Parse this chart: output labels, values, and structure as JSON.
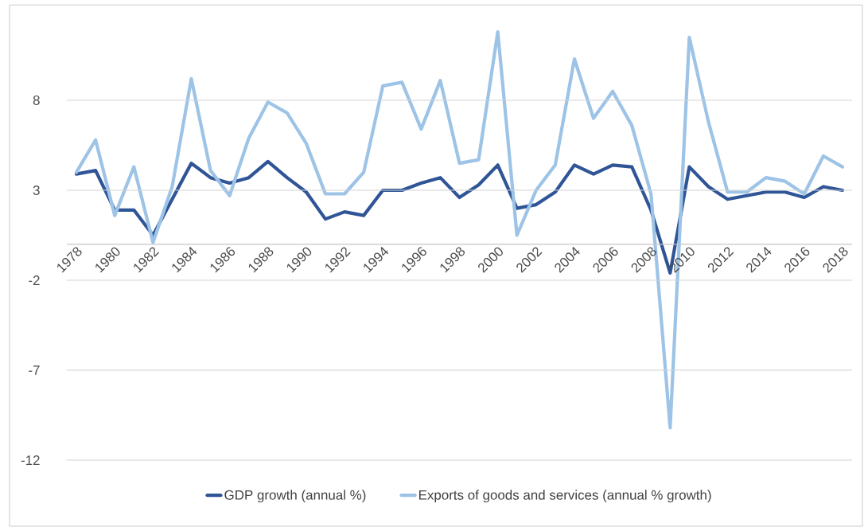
{
  "chart_data": {
    "type": "line",
    "x": [
      1978,
      1979,
      1980,
      1981,
      1982,
      1983,
      1984,
      1985,
      1986,
      1987,
      1988,
      1989,
      1990,
      1991,
      1992,
      1993,
      1994,
      1995,
      1996,
      1997,
      1998,
      1999,
      2000,
      2001,
      2002,
      2003,
      2004,
      2005,
      2006,
      2007,
      2008,
      2009,
      2010,
      2011,
      2012,
      2013,
      2014,
      2015,
      2016,
      2017,
      2018
    ],
    "xlim": [
      1977.5,
      2018.5
    ],
    "xticks": [
      1978,
      1980,
      1982,
      1984,
      1986,
      1988,
      1990,
      1992,
      1994,
      1996,
      1998,
      2000,
      2002,
      2004,
      2006,
      2008,
      2010,
      2012,
      2014,
      2016,
      2018
    ],
    "ylim": [
      -12,
      13.3
    ],
    "yticks": [
      -12,
      -7,
      -2,
      3,
      8
    ],
    "grid": "y",
    "legend": "bottom",
    "marker": "none",
    "line_style": "solid",
    "series": [
      {
        "name": "GDP growth (annual %)",
        "color": "#2f5597",
        "values": [
          3.9,
          4.1,
          1.9,
          1.9,
          0.5,
          2.5,
          4.5,
          3.7,
          3.4,
          3.7,
          4.6,
          3.7,
          2.9,
          1.4,
          1.8,
          1.6,
          3.0,
          3.0,
          3.4,
          3.7,
          2.6,
          3.3,
          4.4,
          2.0,
          2.2,
          2.9,
          4.4,
          3.9,
          4.4,
          4.3,
          1.9,
          -1.6,
          4.3,
          3.2,
          2.5,
          2.7,
          2.9,
          2.9,
          2.6,
          3.2,
          3.0
        ]
      },
      {
        "name": "Exports of goods and services (annual % growth)",
        "color": "#9dc3e6",
        "values": [
          4.0,
          5.8,
          1.6,
          4.3,
          0.1,
          3.2,
          9.2,
          4.1,
          2.7,
          5.9,
          7.9,
          7.3,
          5.6,
          2.8,
          2.8,
          4.0,
          8.8,
          9.0,
          6.4,
          9.1,
          4.5,
          4.7,
          11.8,
          0.5,
          3.0,
          4.4,
          10.3,
          7.0,
          8.5,
          6.6,
          2.8,
          -10.2,
          11.5,
          6.8,
          2.9,
          2.9,
          3.7,
          3.5,
          2.8,
          4.9,
          4.3
        ]
      }
    ]
  }
}
